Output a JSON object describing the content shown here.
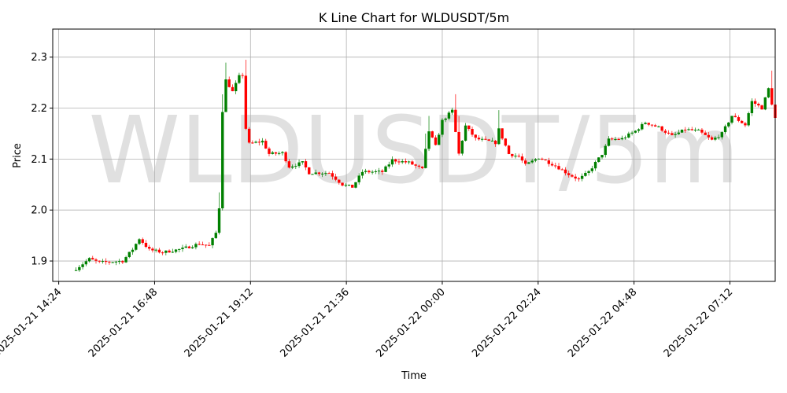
{
  "chart_data": {
    "type": "candlestick",
    "title": "K Line Chart for WLDUSDT/5m",
    "xlabel": "Time",
    "ylabel": "Price",
    "watermark": "WLDUSDT/5m",
    "ylim": [
      1.86,
      2.355
    ],
    "y_ticks": [
      1.9,
      2.0,
      2.1,
      2.2,
      2.3
    ],
    "y_tick_labels": [
      "1.9",
      "2.0",
      "2.1",
      "2.2",
      "2.3"
    ],
    "x_start": "2025-01-21 14:15",
    "x_end": "2025-01-22 08:20",
    "x_ticks": [
      "2025-01-21 14:24",
      "2025-01-21 16:48",
      "2025-01-21 19:12",
      "2025-01-21 21:36",
      "2025-01-22 00:00",
      "2025-01-22 02:24",
      "2025-01-22 04:48",
      "2025-01-22 07:12"
    ],
    "grid": true,
    "colors": {
      "up": "#008000",
      "down": "#ff0000",
      "grid": "#b0b0b0"
    },
    "anchors": [
      [
        "2025-01-21 14:50",
        1.885
      ],
      [
        "2025-01-21 15:10",
        1.904
      ],
      [
        "2025-01-21 15:25",
        1.897
      ],
      [
        "2025-01-21 16:00",
        1.9
      ],
      [
        "2025-01-21 16:15",
        1.923
      ],
      [
        "2025-01-21 16:25",
        1.944
      ],
      [
        "2025-01-21 16:40",
        1.922
      ],
      [
        "2025-01-21 17:00",
        1.917
      ],
      [
        "2025-01-21 17:30",
        1.924
      ],
      [
        "2025-01-21 17:55",
        1.934
      ],
      [
        "2025-01-21 18:10",
        1.93
      ],
      [
        "2025-01-21 18:20",
        1.955
      ],
      [
        "2025-01-21 18:25",
        2.005
      ],
      [
        "2025-01-21 18:30",
        2.195
      ],
      [
        "2025-01-21 18:35",
        2.255
      ],
      [
        "2025-01-21 18:45",
        2.232
      ],
      [
        "2025-01-21 18:55",
        2.262
      ],
      [
        "2025-01-21 19:00",
        2.265
      ],
      [
        "2025-01-21 19:05",
        2.16
      ],
      [
        "2025-01-21 19:10",
        2.13
      ],
      [
        "2025-01-21 19:30",
        2.135
      ],
      [
        "2025-01-21 19:40",
        2.11
      ],
      [
        "2025-01-21 20:00",
        2.112
      ],
      [
        "2025-01-21 20:10",
        2.085
      ],
      [
        "2025-01-21 20:30",
        2.093
      ],
      [
        "2025-01-21 20:40",
        2.073
      ],
      [
        "2025-01-21 21:10",
        2.073
      ],
      [
        "2025-01-21 21:30",
        2.05
      ],
      [
        "2025-01-21 21:45",
        2.045
      ],
      [
        "2025-01-21 22:00",
        2.075
      ],
      [
        "2025-01-21 22:30",
        2.075
      ],
      [
        "2025-01-21 22:45",
        2.098
      ],
      [
        "2025-01-21 23:10",
        2.093
      ],
      [
        "2025-01-21 23:30",
        2.08
      ],
      [
        "2025-01-21 23:40",
        2.155
      ],
      [
        "2025-01-21 23:50",
        2.125
      ],
      [
        "2025-01-22 00:00",
        2.175
      ],
      [
        "2025-01-22 00:15",
        2.195
      ],
      [
        "2025-01-22 00:25",
        2.11
      ],
      [
        "2025-01-22 00:35",
        2.165
      ],
      [
        "2025-01-22 00:50",
        2.14
      ],
      [
        "2025-01-22 01:20",
        2.132
      ],
      [
        "2025-01-22 01:25",
        2.158
      ],
      [
        "2025-01-22 01:40",
        2.11
      ],
      [
        "2025-01-22 01:55",
        2.105
      ],
      [
        "2025-01-22 02:05",
        2.088
      ],
      [
        "2025-01-22 02:25",
        2.103
      ],
      [
        "2025-01-22 02:50",
        2.087
      ],
      [
        "2025-01-22 03:10",
        2.07
      ],
      [
        "2025-01-22 03:25",
        2.06
      ],
      [
        "2025-01-22 03:40",
        2.075
      ],
      [
        "2025-01-22 04:00",
        2.11
      ],
      [
        "2025-01-22 04:10",
        2.138
      ],
      [
        "2025-01-22 04:30",
        2.14
      ],
      [
        "2025-01-22 04:50",
        2.155
      ],
      [
        "2025-01-22 05:05",
        2.172
      ],
      [
        "2025-01-22 05:25",
        2.162
      ],
      [
        "2025-01-22 05:45",
        2.145
      ],
      [
        "2025-01-22 06:05",
        2.158
      ],
      [
        "2025-01-22 06:25",
        2.155
      ],
      [
        "2025-01-22 06:45",
        2.137
      ],
      [
        "2025-01-22 07:00",
        2.15
      ],
      [
        "2025-01-22 07:15",
        2.185
      ],
      [
        "2025-01-22 07:35",
        2.167
      ],
      [
        "2025-01-22 07:45",
        2.213
      ],
      [
        "2025-01-22 08:00",
        2.2
      ],
      [
        "2025-01-22 08:10",
        2.238
      ],
      [
        "2025-01-22 08:20",
        2.18
      ]
    ]
  }
}
